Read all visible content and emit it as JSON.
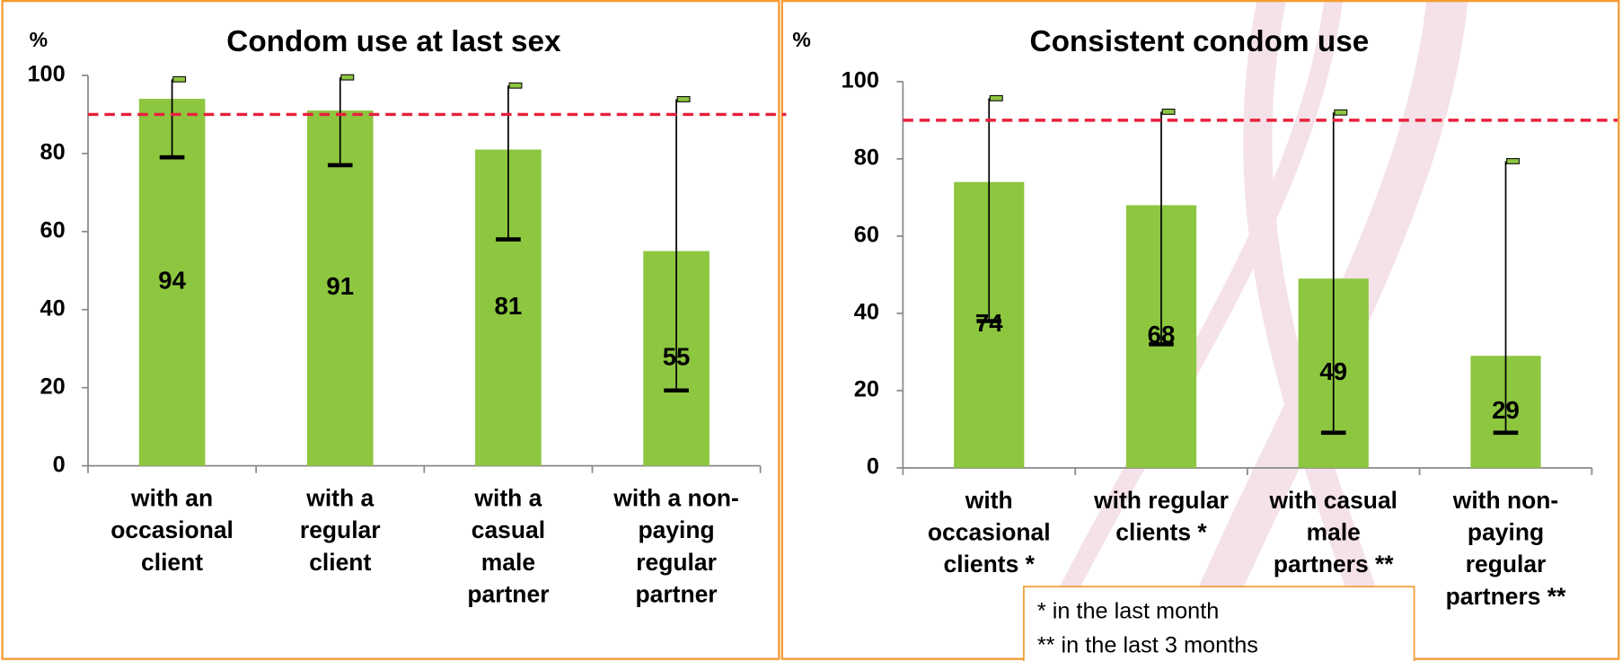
{
  "chart_data": [
    {
      "type": "bar",
      "title": "Condom use at last sex",
      "y_label": "%",
      "categories": [
        [
          "with an",
          "occasional",
          "client"
        ],
        [
          "with a",
          "regular",
          "client"
        ],
        [
          "with a",
          "casual",
          "male",
          "partner"
        ],
        [
          "with a non-",
          "paying",
          "regular",
          "partner"
        ]
      ],
      "values": [
        94,
        91,
        81,
        55
      ],
      "lower": [
        79,
        77,
        58,
        19.3
      ],
      "upper": [
        99,
        99.5,
        97.4,
        93.9
      ],
      "color": "#8dc63f",
      "reference_line": 90,
      "reference_color": "#e8203c",
      "ylim": [
        0,
        100
      ],
      "yticks": [
        0,
        20,
        40,
        60,
        80,
        100
      ]
    },
    {
      "type": "bar",
      "title": "Consistent condom use",
      "y_label": "%",
      "categories": [
        [
          "with",
          "occasional",
          "clients *"
        ],
        [
          "with regular",
          "clients *"
        ],
        [
          "with casual",
          "male",
          "partners **"
        ],
        [
          "with non-",
          "paying",
          "regular",
          "partners **"
        ]
      ],
      "values": [
        74,
        68,
        49,
        29
      ],
      "lower": [
        38,
        32,
        9.1,
        9.1
      ],
      "upper": [
        95.7,
        92.2,
        92,
        79.4
      ],
      "color": "#8dc63f",
      "reference_line": 90,
      "reference_color": "#e8203c",
      "ylim": [
        0,
        100
      ],
      "yticks": [
        0,
        20,
        40,
        60,
        80,
        100
      ],
      "annotations": [
        "* in the last month",
        "** in the last 3 months"
      ]
    }
  ]
}
